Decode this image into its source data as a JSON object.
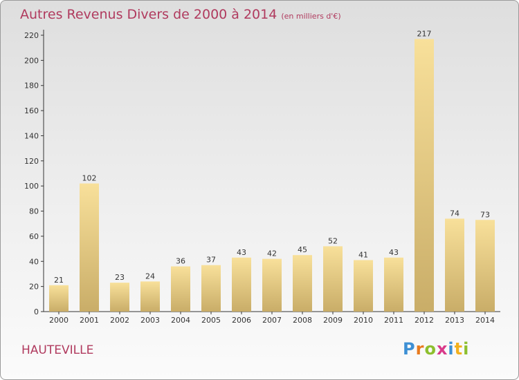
{
  "title": "Autres Revenus Divers de 2000 à 2014",
  "subtitle": "(en milliers d'€)",
  "city": "HAUTEVILLE",
  "logo": [
    "P",
    "r",
    "o",
    "x",
    "i",
    "t",
    "i"
  ],
  "colors": {
    "title": "#b03a5e",
    "bar_light": "#f8e09a",
    "bar_dark": "#c9ad68",
    "axis": "#333333"
  },
  "chart_data": {
    "type": "bar",
    "categories": [
      "2000",
      "2001",
      "2002",
      "2003",
      "2004",
      "2005",
      "2006",
      "2007",
      "2008",
      "2009",
      "2010",
      "2011",
      "2012",
      "2013",
      "2014"
    ],
    "values": [
      21,
      102,
      23,
      24,
      36,
      37,
      43,
      42,
      45,
      52,
      41,
      43,
      217,
      74,
      73
    ],
    "title": "Autres Revenus Divers de 2000 à 2014",
    "xlabel": "",
    "ylabel": "",
    "ylim": [
      0,
      220
    ],
    "yticks": [
      0,
      20,
      40,
      60,
      80,
      100,
      120,
      140,
      160,
      180,
      200,
      220
    ],
    "grid": false,
    "data_labels": true
  }
}
